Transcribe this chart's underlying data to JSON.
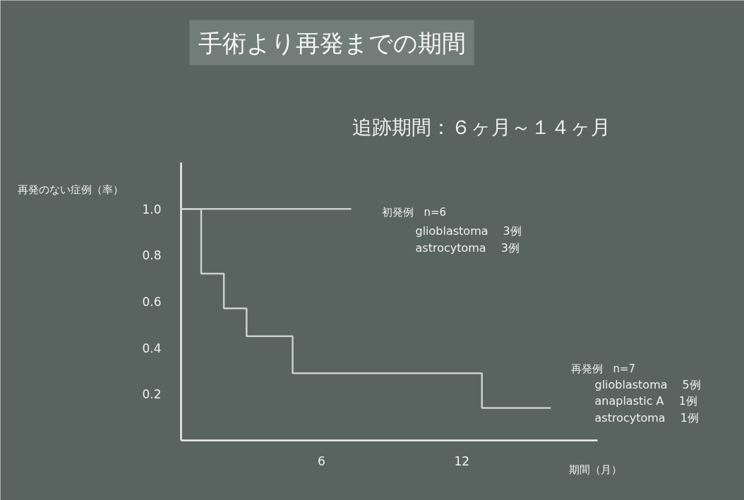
{
  "chart_data": {
    "type": "step",
    "title": "手術より再発までの期間",
    "subtitle": "追跡期間：６ヶ月～１４ヶ月",
    "xlabel": "期間（月）",
    "ylabel": "再発のない症例（率）",
    "xlim": [
      0,
      17.8
    ],
    "ylim": [
      0,
      1.2
    ],
    "xticks": [
      6,
      12
    ],
    "yticks": [
      0.2,
      0.4,
      0.6,
      0.8,
      {
        "value": 1.0,
        "label": "1.0"
      }
    ],
    "series": [
      {
        "name": "初発例　n=6",
        "color": "#c9d0cd",
        "x": [
          0,
          7.27
        ],
        "values": [
          1.0,
          1.0
        ]
      },
      {
        "name": "再発例　n=7",
        "color": "#c9d0cd",
        "x": [
          0,
          0.86,
          1.83,
          2.8,
          4.77,
          12.86,
          15.8
        ],
        "values": [
          1.0,
          0.72,
          0.57,
          0.45,
          0.29,
          0.14,
          0.14
        ]
      }
    ],
    "annotations": [
      "glioblastoma　 3例",
      "astrocytoma　 3例",
      "glioblastoma　  5例",
      "anaplastic A　 1例",
      "astrocytoma　  1例"
    ],
    "grid": false,
    "legend": false,
    "marker": "none",
    "line_style": "solid"
  }
}
